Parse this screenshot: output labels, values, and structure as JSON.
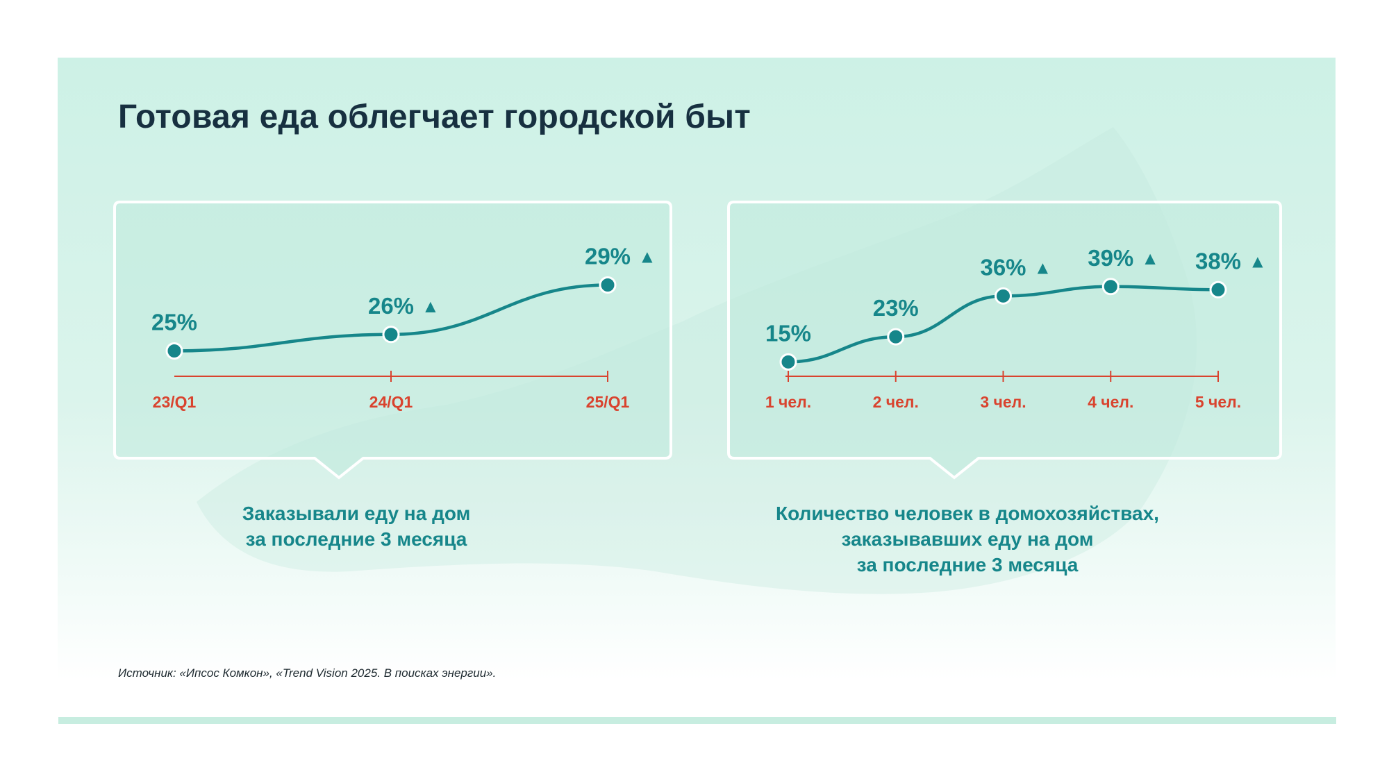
{
  "title": "Готовая еда облегчает городской быт",
  "source": "Источник: «Ипсос Комкон», «Trend Vision 2025. В поисках энергии».",
  "colors": {
    "accent": "#16868a",
    "axis": "#d9432e",
    "title": "#173040",
    "background": "#d4f2e9"
  },
  "chart_data": [
    {
      "type": "line",
      "categories": [
        "23/Q1",
        "24/Q1",
        "25/Q1"
      ],
      "values": [
        25,
        26,
        29
      ],
      "data_labels": [
        "25%",
        "26%",
        "29%"
      ],
      "growth_markers": [
        false,
        true,
        true
      ],
      "marker_symbol": "▲",
      "label_lines": [
        "Заказывали еду на дом",
        "за последние 3 месяца"
      ],
      "ylim": [
        23,
        31
      ]
    },
    {
      "type": "line",
      "categories": [
        "1 чел.",
        "2 чел.",
        "3 чел.",
        "4 чел.",
        "5 чел."
      ],
      "values": [
        15,
        23,
        36,
        39,
        38
      ],
      "data_labels": [
        "15%",
        "23%",
        "36%",
        "39%",
        "38%"
      ],
      "growth_markers": [
        false,
        false,
        true,
        true,
        true
      ],
      "marker_symbol": "▲",
      "label_lines": [
        "Количество человек в домохозяйствах,",
        "заказывавших еду на дом",
        "за последние 3 месяца"
      ],
      "ylim": [
        8,
        50
      ]
    }
  ]
}
